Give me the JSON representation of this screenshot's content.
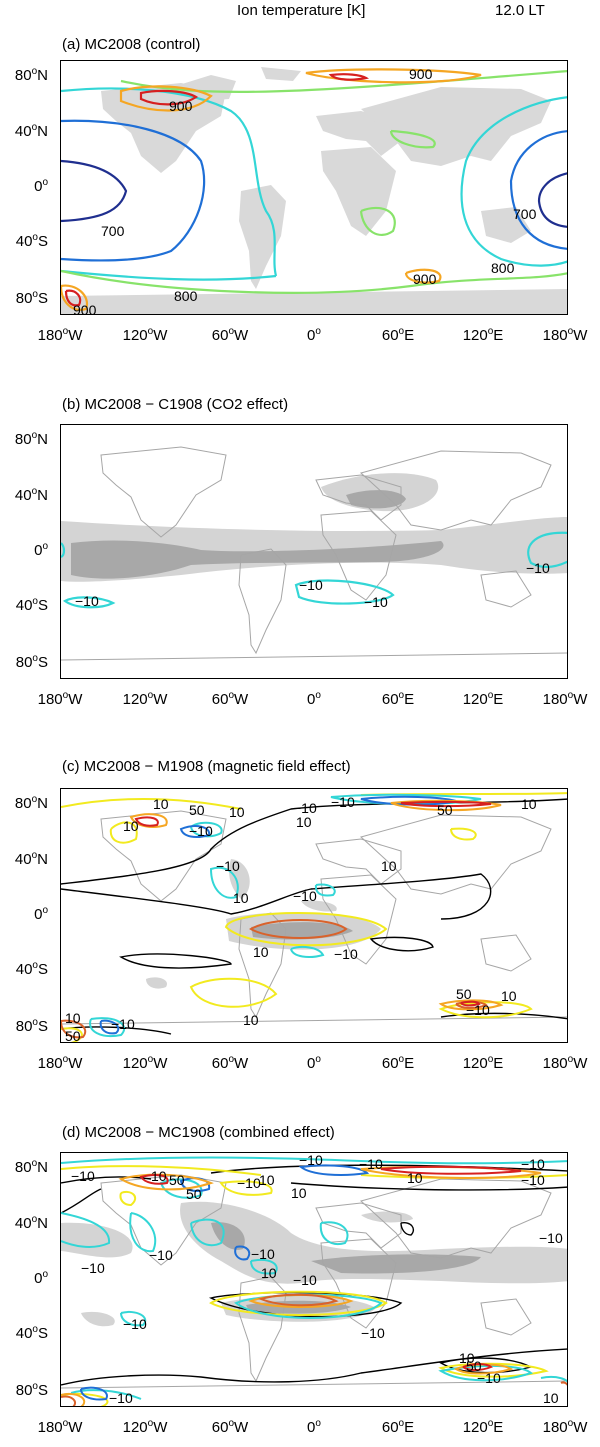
{
  "header": {
    "variable": "Ion temperature [K]",
    "time": "12.0 LT"
  },
  "axes": {
    "lat_labels": [
      "80°N",
      "40°N",
      "0°",
      "40°S",
      "80°S"
    ],
    "lon_labels": [
      "180°W",
      "120°W",
      "60°W",
      "0°",
      "60°E",
      "120°E",
      "180°W"
    ]
  },
  "panels": [
    {
      "title": "(a) MC2008 (control)",
      "labels": [
        "900",
        "900",
        "700",
        "700",
        "800",
        "800",
        "900",
        "900"
      ]
    },
    {
      "title": "(b) MC2008 − C1908 (CO2 effect)",
      "labels": [
        "−10",
        "−10",
        "−10",
        "−10"
      ]
    },
    {
      "title": "(c) MC2008 − M1908 (magnetic field effect)",
      "labels": [
        "10",
        "50",
        "10",
        "−10",
        "−10",
        "10",
        "50",
        "10",
        "10",
        "−10",
        "10",
        "−10",
        "10",
        "−10",
        "10",
        "−10",
        "10",
        "50",
        "10",
        "−10",
        "10",
        "50",
        "−10"
      ]
    },
    {
      "title": "(d) MC2008 − MC1908 (combined effect)",
      "labels": [
        "−10",
        "10",
        "50",
        "50",
        "−10",
        "10",
        "−10",
        "10",
        "−10",
        "10",
        "−10",
        "−10",
        "−10",
        "−10",
        "−10",
        "−10",
        "−10",
        "10",
        "−10",
        "−10",
        "10",
        "50",
        "−10",
        "−10",
        "10"
      ]
    }
  ],
  "colors": {
    "land": "#d9d9d9",
    "coast": "#a6a6a6",
    "shade_light": "#d4d4d4",
    "shade_dark": "#a8a8a8",
    "c_dark_blue": "#1f2f8f",
    "c_blue": "#1f6fd6",
    "c_cyan": "#33d6d6",
    "c_green": "#88e36a",
    "c_yellow": "#f2ea1f",
    "c_orange": "#f5a623",
    "c_red": "#d62020",
    "c_dark_orange": "#d9622b",
    "c_black": "#000000"
  }
}
